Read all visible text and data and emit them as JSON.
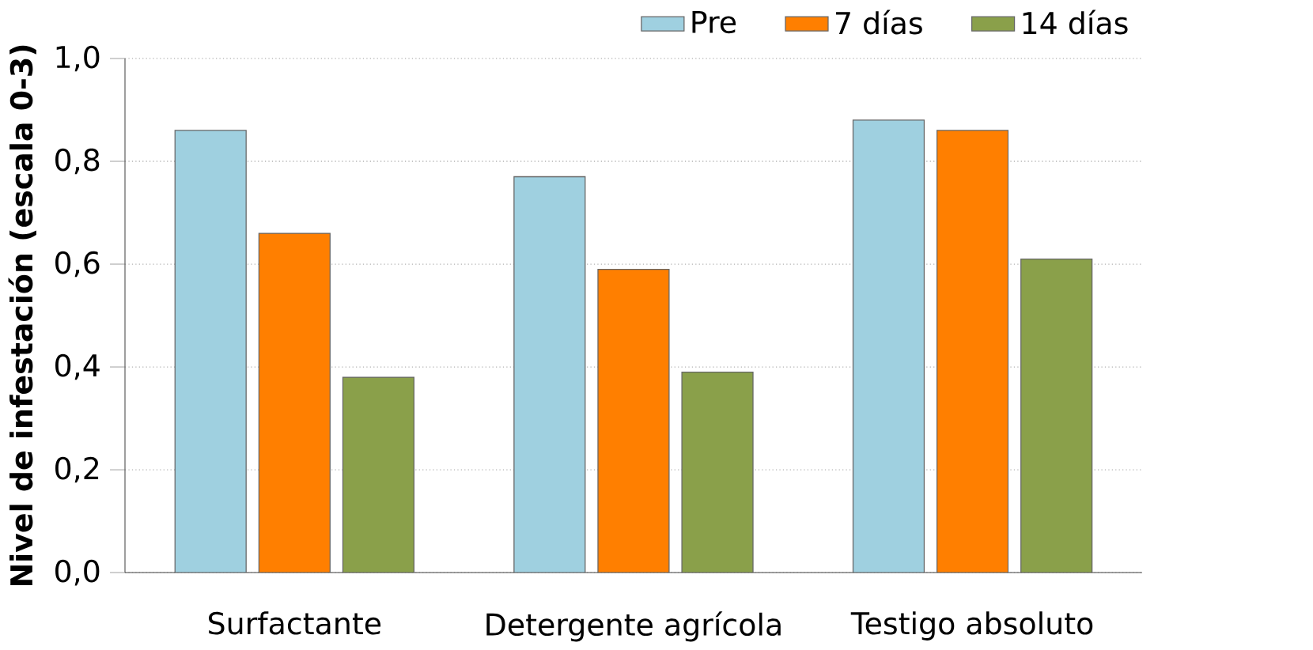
{
  "chart_data": {
    "type": "bar",
    "ylabel": "Nivel de infestación (escala 0-3)",
    "categories": [
      "Surfactante",
      "Detergente agrícola",
      "Testigo absoluto"
    ],
    "series": [
      {
        "name": "Pre",
        "color": "#9fd0e0",
        "values": [
          0.86,
          0.77,
          0.88
        ]
      },
      {
        "name": "7 días",
        "color": "#ff7f00",
        "values": [
          0.66,
          0.59,
          0.86
        ]
      },
      {
        "name": "14 días",
        "color": "#8aa04a",
        "values": [
          0.38,
          0.39,
          0.61
        ]
      }
    ],
    "ylim": [
      0,
      1
    ],
    "yticks": [
      {
        "value": 0,
        "label": "0,0"
      },
      {
        "value": 0.2,
        "label": "0,2"
      },
      {
        "value": 0.4,
        "label": "0,4"
      },
      {
        "value": 0.6,
        "label": "0,6"
      },
      {
        "value": 0.8,
        "label": "0,8"
      },
      {
        "value": 1,
        "label": "1,0"
      }
    ],
    "grid": "y",
    "legend": "top right"
  }
}
